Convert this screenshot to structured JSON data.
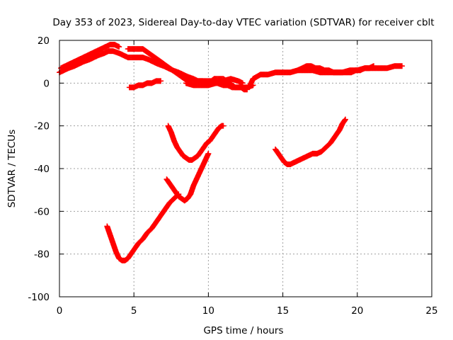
{
  "chart_data": {
    "type": "scatter",
    "title": "Day 353 of 2023, Sidereal Day-to-day VTEC variation (SDTVAR) for receiver cblt",
    "xlabel": "GPS time / hours",
    "ylabel": "SDTVAR / TECUs",
    "xlim": [
      0,
      25
    ],
    "ylim": [
      -100,
      20
    ],
    "xticks": [
      0,
      5,
      10,
      15,
      20,
      25
    ],
    "yticks": [
      -100,
      -80,
      -60,
      -40,
      -20,
      0,
      20
    ],
    "grid": true,
    "marker": "plus",
    "color": "#ff0000",
    "series": [
      {
        "x": [
          0.0,
          0.3,
          0.6,
          1.0,
          1.3,
          1.6,
          2.0,
          2.3,
          2.6,
          3.0,
          3.3,
          3.6,
          4.0,
          4.3,
          4.6,
          5.0,
          5.3,
          5.6,
          6.0,
          6.3,
          6.6,
          7.0,
          7.3,
          7.6,
          8.0,
          8.3,
          8.6,
          9.0,
          9.3,
          9.6,
          10.0,
          10.3,
          10.6,
          11.0,
          11.3,
          11.6,
          12.0,
          12.3,
          12.6,
          13.0
        ],
        "y": [
          5,
          6,
          7,
          8,
          9,
          10,
          11,
          12,
          13,
          14,
          15,
          15,
          14,
          13,
          12,
          12,
          12,
          12,
          11,
          10,
          9,
          8,
          7,
          6,
          5,
          4,
          3,
          2,
          1,
          1,
          0,
          0,
          0,
          -1,
          -1,
          -2,
          -2,
          -2,
          -2,
          -1
        ]
      },
      {
        "x": [
          0.1,
          0.4,
          0.7,
          1.0,
          1.3,
          1.6,
          1.9,
          2.2,
          2.5,
          2.8,
          3.1,
          3.4,
          3.7,
          4.0
        ],
        "y": [
          7,
          8,
          9,
          10,
          11,
          12,
          13,
          14,
          15,
          16,
          17,
          18,
          18,
          17
        ]
      },
      {
        "x": [
          4.6,
          4.8,
          5.0,
          5.2,
          5.4,
          5.6,
          5.8,
          6.0,
          6.2,
          6.4,
          6.6,
          6.8,
          7.0,
          7.2,
          7.4,
          7.6,
          7.8,
          8.0,
          8.2,
          8.4,
          8.6,
          8.8,
          9.0,
          9.2,
          9.4,
          9.6,
          9.8,
          10.0,
          10.2,
          10.4,
          10.6,
          10.8,
          11.0,
          11.2,
          11.4,
          11.6,
          11.8,
          12.0,
          12.2,
          12.4,
          12.6
        ],
        "y": [
          16,
          16,
          16,
          16,
          16,
          16,
          15,
          14,
          13,
          12,
          11,
          10,
          9,
          8,
          7,
          6,
          5,
          4,
          3,
          2,
          1,
          1,
          1,
          1,
          1,
          1,
          1,
          1,
          1,
          2,
          2,
          2,
          2,
          1,
          0,
          -1,
          -2,
          -2,
          -2,
          -3,
          -3
        ]
      },
      {
        "x": [
          8.5,
          9.0,
          9.5,
          10.0,
          10.5,
          11.0,
          11.5,
          12.0,
          12.3
        ],
        "y": [
          0,
          -1,
          -1,
          -1,
          0,
          1,
          2,
          1,
          0
        ]
      },
      {
        "x": [
          4.7,
          5.0,
          5.3,
          5.6,
          5.9,
          6.2,
          6.5,
          6.8
        ],
        "y": [
          -2,
          -2,
          -1,
          -1,
          0,
          0,
          1,
          1
        ]
      },
      {
        "x": [
          12.8,
          13.0,
          13.5,
          14.0,
          14.5,
          15.0,
          15.5,
          16.0,
          16.5,
          17.0,
          17.5,
          18.0,
          18.5,
          19.0,
          19.5,
          20.0,
          20.5,
          21.0,
          21.5,
          22.0,
          22.5,
          23.0
        ],
        "y": [
          -1,
          2,
          4,
          4,
          5,
          5,
          5,
          6,
          6,
          6,
          5,
          5,
          5,
          5,
          6,
          6,
          7,
          7,
          7,
          7,
          8,
          8
        ]
      },
      {
        "x": [
          16.0,
          16.3,
          16.6,
          16.9,
          17.2,
          17.5,
          17.8,
          18.1,
          18.4,
          18.7,
          19.0,
          19.3,
          19.6,
          19.9,
          20.2,
          20.5,
          20.8,
          21.1
        ],
        "y": [
          6,
          7,
          8,
          8,
          7,
          7,
          6,
          6,
          5,
          5,
          5,
          5,
          5,
          6,
          6,
          7,
          7,
          8
        ]
      },
      {
        "x": [
          7.3,
          7.5,
          7.7,
          7.9,
          8.1,
          8.3,
          8.5,
          8.7,
          8.9,
          9.1,
          9.3,
          9.5,
          9.7,
          9.9,
          10.1,
          10.3,
          10.5,
          10.7,
          10.9,
          11.0
        ],
        "y": [
          -20,
          -23,
          -27,
          -30,
          -32,
          -34,
          -35,
          -36,
          -36,
          -35,
          -34,
          -32,
          -30,
          -28,
          -27,
          -25,
          -23,
          -21,
          -20,
          -20
        ]
      },
      {
        "x": [
          14.5,
          14.7,
          14.9,
          15.1,
          15.3,
          15.5,
          15.8,
          16.1,
          16.4,
          16.7,
          17.0,
          17.3,
          17.6,
          17.9,
          18.2,
          18.5,
          18.8,
          19.0,
          19.2
        ],
        "y": [
          -31,
          -33,
          -35,
          -37,
          -38,
          -38,
          -37,
          -36,
          -35,
          -34,
          -33,
          -33,
          -32,
          -30,
          -28,
          -25,
          -22,
          -19,
          -17
        ]
      },
      {
        "x": [
          3.2,
          3.4,
          3.6,
          3.8,
          4.0,
          4.2,
          4.4,
          4.6,
          4.8,
          5.0,
          5.3,
          5.6,
          5.9,
          6.2,
          6.5,
          6.8,
          7.1,
          7.4,
          7.7,
          8.0
        ],
        "y": [
          -67,
          -71,
          -75,
          -79,
          -82,
          -83,
          -83,
          -82,
          -80,
          -78,
          -75,
          -73,
          -70,
          -68,
          -65,
          -62,
          -59,
          -56,
          -54,
          -52
        ]
      },
      {
        "x": [
          7.2,
          7.4,
          7.6,
          7.8,
          8.0,
          8.2,
          8.4,
          8.6,
          8.8,
          9.0,
          9.2,
          9.4,
          9.6,
          9.8,
          10.0
        ],
        "y": [
          -45,
          -47,
          -49,
          -51,
          -53,
          -54,
          -55,
          -54,
          -52,
          -48,
          -45,
          -42,
          -39,
          -36,
          -33
        ]
      }
    ]
  }
}
